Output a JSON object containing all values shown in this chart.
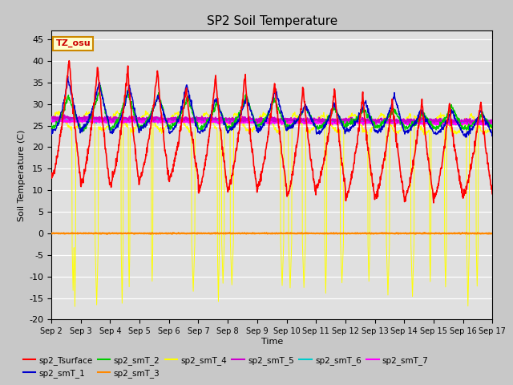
{
  "title": "SP2 Soil Temperature",
  "xlabel": "Time",
  "ylabel": "Soil Temperature (C)",
  "ylim": [
    -20,
    47
  ],
  "yticks": [
    -20,
    -15,
    -10,
    -5,
    0,
    5,
    10,
    15,
    20,
    25,
    30,
    35,
    40,
    45
  ],
  "fig_bg_color": "#c8c8c8",
  "plot_bg_color": "#e0e0e0",
  "annotation_box": "TZ_osu",
  "annotation_color": "#cc0000",
  "annotation_bg": "#ffffcc",
  "annotation_border": "#cc8800",
  "zero_line_color": "#ff8800",
  "series_colors": {
    "sp2_Tsurface": "#ff0000",
    "sp2_smT_1": "#0000cc",
    "sp2_smT_2": "#00cc00",
    "sp2_smT_3": "#ff8800",
    "sp2_smT_4": "#ffff00",
    "sp2_smT_5": "#cc00cc",
    "sp2_smT_6": "#00cccc",
    "sp2_smT_7": "#ff00ff"
  },
  "n_points": 1440,
  "n_days": 15,
  "seed": 42
}
